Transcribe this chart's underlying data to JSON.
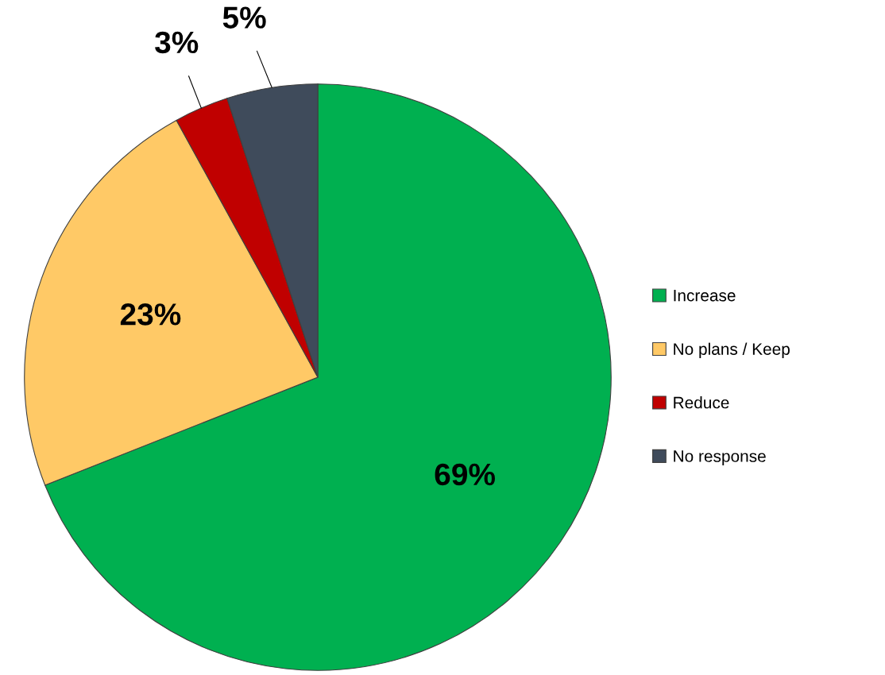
{
  "chart_data": {
    "type": "pie",
    "categories": [
      "Increase",
      "No plans / Keep",
      "Reduce",
      "No response"
    ],
    "values": [
      69,
      23,
      3,
      5
    ],
    "colors": [
      "#00b050",
      "#ffc966",
      "#c00000",
      "#3f4b5b"
    ],
    "value_labels": [
      "69%",
      "23%",
      "3%",
      "5%"
    ],
    "legend": "right"
  }
}
